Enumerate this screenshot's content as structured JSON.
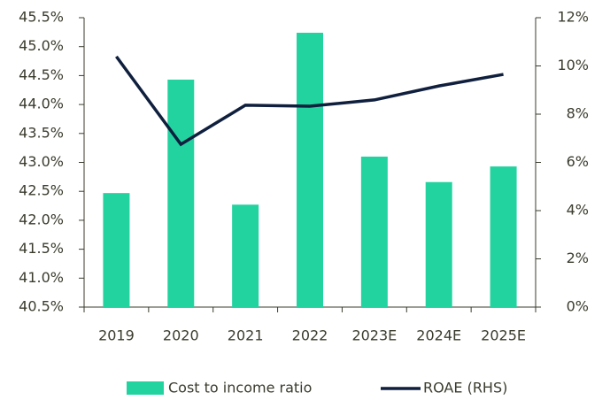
{
  "chart_data": {
    "type": "bar_line",
    "categories": [
      "2019",
      "2020",
      "2021",
      "2022",
      "2023E",
      "2024E",
      "2025E"
    ],
    "series": [
      {
        "name": "Cost to income ratio",
        "type": "bar",
        "color": "#22d3a0",
        "values": [
          42.47,
          44.43,
          42.27,
          45.24,
          43.1,
          42.66,
          42.93
        ]
      },
      {
        "name": "ROAE (RHS)",
        "type": "line",
        "axis": "y2",
        "color": "#0f1f3d",
        "values": [
          10.39,
          6.75,
          8.37,
          8.33,
          8.59,
          9.17,
          9.65
        ]
      }
    ],
    "ylim": [
      40.5,
      45.5
    ],
    "yticks": [
      {
        "value": 40.5,
        "label": "40.5%"
      },
      {
        "value": 41.0,
        "label": "41.0%"
      },
      {
        "value": 41.5,
        "label": "41.5%"
      },
      {
        "value": 42.0,
        "label": "42.0%"
      },
      {
        "value": 42.5,
        "label": "42.5%"
      },
      {
        "value": 43.0,
        "label": "43.0%"
      },
      {
        "value": 43.5,
        "label": "43.5%"
      },
      {
        "value": 44.0,
        "label": "44.0%"
      },
      {
        "value": 44.5,
        "label": "44.5%"
      },
      {
        "value": 45.0,
        "label": "45.0%"
      },
      {
        "value": 45.5,
        "label": "45.5%"
      }
    ],
    "y2lim": [
      0,
      12
    ],
    "y2ticks": [
      {
        "value": 0,
        "label": "0%"
      },
      {
        "value": 2,
        "label": "2%"
      },
      {
        "value": 4,
        "label": "4%"
      },
      {
        "value": 6,
        "label": "6%"
      },
      {
        "value": 8,
        "label": "8%"
      },
      {
        "value": 10,
        "label": "10%"
      },
      {
        "value": 12,
        "label": "12%"
      }
    ],
    "grid": false,
    "legend": "bottom"
  }
}
